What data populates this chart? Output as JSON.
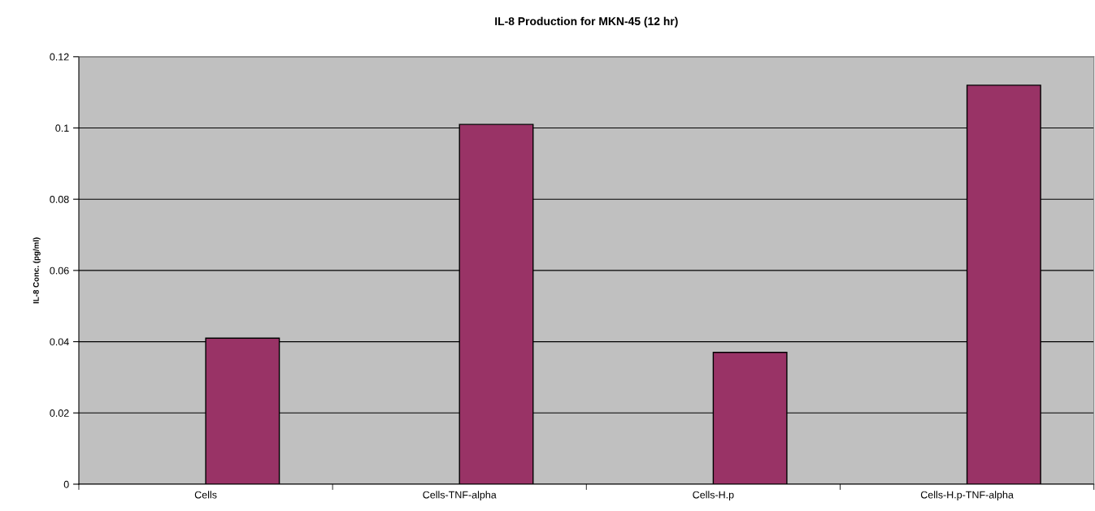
{
  "chart_data": {
    "type": "bar",
    "title": "IL-8 Production for MKN-45 (12 hr)",
    "ylabel": "IL-8 Conc. (pg/ml)",
    "categories": [
      "Cells",
      "Cells-TNF-alpha",
      "Cells-H.p",
      "Cells-H.p-TNF-alpha"
    ],
    "values": [
      0.041,
      0.101,
      0.037,
      0.112
    ],
    "color": "#993366",
    "ylim": [
      0,
      0.12
    ],
    "yticks": [
      0,
      0.02,
      0.04,
      0.06,
      0.08,
      {
        "value": 0.1,
        "label": "0.1"
      },
      0.12
    ],
    "grid": "y"
  }
}
